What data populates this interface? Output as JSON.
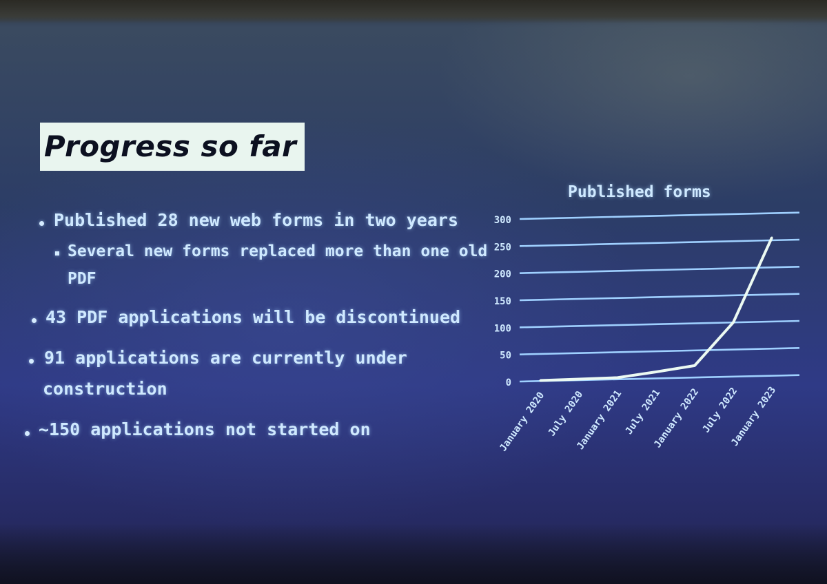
{
  "slide": {
    "title": "Progress so far",
    "bullets": [
      "Published 28 new web forms in two years",
      "Several new forms replaced more than one old",
      "PDF",
      "43 PDF applications will be discontinued",
      "91 applications are currently under",
      "construction",
      "~150 applications not started on"
    ]
  },
  "chart_data": {
    "type": "line",
    "title": "Published forms",
    "x": [
      "January 2020",
      "July 2020",
      "January 2021",
      "July 2021",
      "January 2022",
      "July 2022",
      "January 2023"
    ],
    "series": [
      {
        "values": [
          1,
          2,
          3,
          12,
          22,
          100,
          255
        ]
      }
    ],
    "yticks": [
      "0",
      "50",
      "100",
      "150",
      "200",
      "250",
      "300"
    ],
    "ylim": [
      0,
      300
    ],
    "grid": true,
    "legend": "none",
    "colors": {
      "line": "#ecfaf2",
      "grid": "#9fd0ff",
      "text": "#cfe9ff"
    }
  }
}
